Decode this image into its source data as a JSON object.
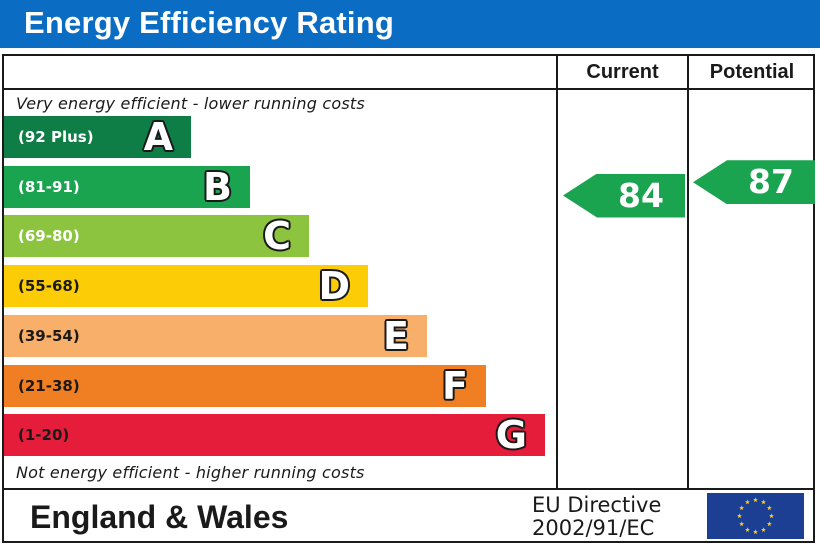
{
  "title": "Energy Efficiency Rating",
  "columns": {
    "current": "Current",
    "potential": "Potential"
  },
  "top_note": "Very energy efficient - lower running costs",
  "bottom_note": "Not energy efficient - higher running costs",
  "footer": {
    "region": "England & Wales",
    "directive_line1": "EU Directive",
    "directive_line2": "2002/91/EC",
    "flag_icon": "eu-flag-icon"
  },
  "colors": {
    "header": "#0a6cc3",
    "flag": "#1c3f94",
    "stars": "#ffcc00"
  },
  "chart_data": {
    "type": "bar",
    "title": "Energy Efficiency Rating",
    "bands": [
      {
        "letter": "A",
        "range": "(92 Plus)",
        "min": 92,
        "max": 100,
        "color": "#0e7d46",
        "text_color": "#ffffff"
      },
      {
        "letter": "B",
        "range": "(81-91)",
        "min": 81,
        "max": 91,
        "color": "#1aa450",
        "text_color": "#ffffff"
      },
      {
        "letter": "C",
        "range": "(69-80)",
        "min": 69,
        "max": 80,
        "color": "#8cc43f",
        "text_color": "#ffffff"
      },
      {
        "letter": "D",
        "range": "(55-68)",
        "min": 55,
        "max": 68,
        "color": "#fccc06",
        "text_color": "#1a1a1a"
      },
      {
        "letter": "E",
        "range": "(39-54)",
        "min": 39,
        "max": 54,
        "color": "#f7af6a",
        "text_color": "#1a1a1a"
      },
      {
        "letter": "F",
        "range": "(21-38)",
        "min": 21,
        "max": 38,
        "color": "#f07e23",
        "text_color": "#1a1a1a"
      },
      {
        "letter": "G",
        "range": "(1-20)",
        "min": 1,
        "max": 20,
        "color": "#e51d3b",
        "text_color": "#1a1a1a"
      }
    ],
    "current": {
      "value": 84,
      "band": "B",
      "color": "#1aa450"
    },
    "potential": {
      "value": 87,
      "band": "B",
      "color": "#1aa450"
    }
  }
}
